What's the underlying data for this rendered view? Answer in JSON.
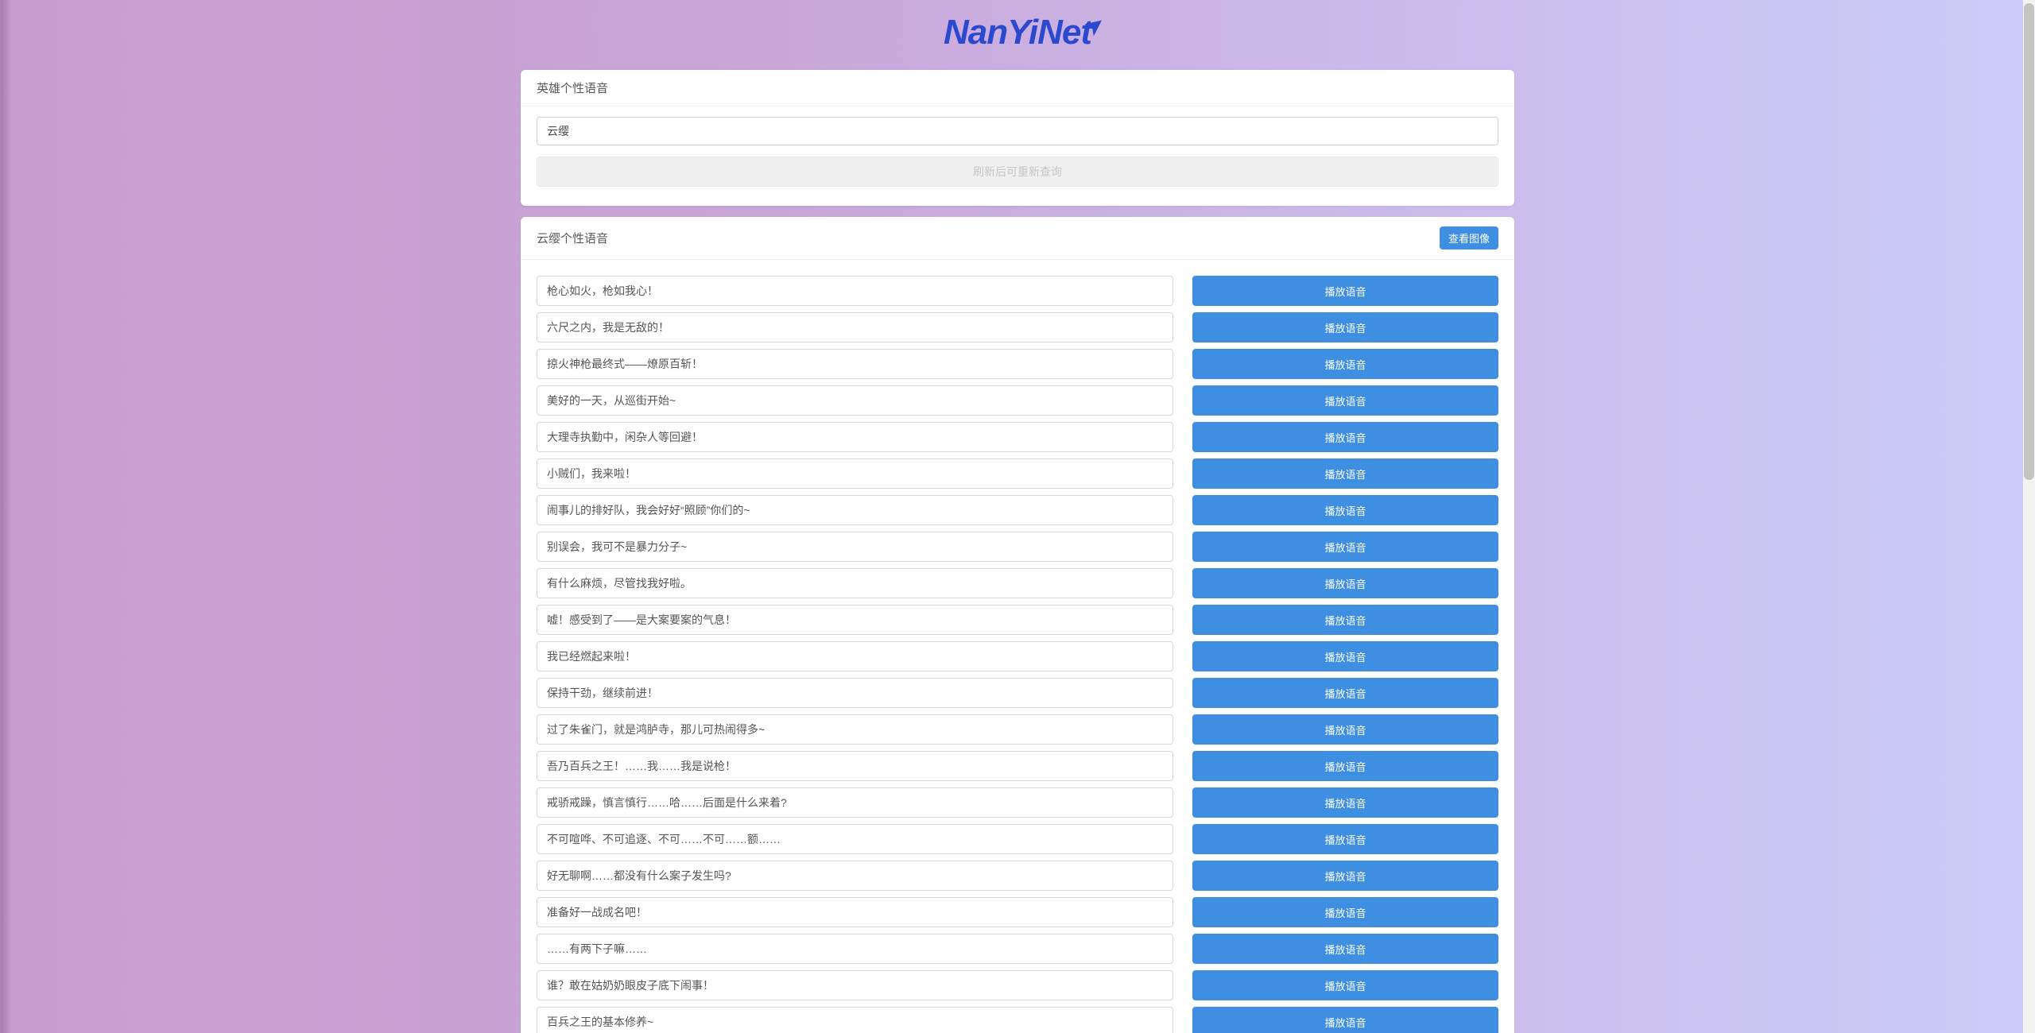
{
  "logo": {
    "text": "NanYiNet",
    "arrow_icon": "➤",
    "color": "#2b49cf"
  },
  "search_card": {
    "title": "英雄个性语音",
    "input_value": "云缨",
    "refresh_button_label": "刷新后可重新查询"
  },
  "results_card": {
    "title": "云缨个性语音",
    "view_image_button_label": "查看图像",
    "play_button_label": "播放语音",
    "voices": [
      "枪心如火，枪如我心！",
      "六尺之内，我是无敌的！",
      "掠火神枪最终式——燎原百斩！",
      "美好的一天，从巡街开始~",
      "大理寺执勤中，闲杂人等回避！",
      "小贼们，我来啦！",
      "闹事儿的排好队，我会好好“照顾”你们的~",
      "别误会，我可不是暴力分子~",
      "有什么麻烦，尽管找我好啦。",
      "嘘！感受到了——是大案要案的气息！",
      "我已经燃起来啦！",
      "保持干劲，继续前进！",
      "过了朱雀门，就是鸿胪寺，那儿可热闹得多~",
      "吾乃百兵之王！……我……我是说枪！",
      "戒骄戒躁，慎言慎行……哈……后面是什么来着?",
      "不可喧哗、不可追逐、不可……不可……额……",
      "好无聊啊……都没有什么案子发生吗?",
      "准备好一战成名吧！",
      "……有两下子嘛……",
      "谁？敢在姑奶奶眼皮子底下闹事！",
      "百兵之王的基本修养~"
    ]
  },
  "colors": {
    "accent_blue": "#3e8ee2",
    "logo_blue": "#2b49cf",
    "gradient_left": "#c99ccf",
    "gradient_right": "#cbcdf8"
  }
}
